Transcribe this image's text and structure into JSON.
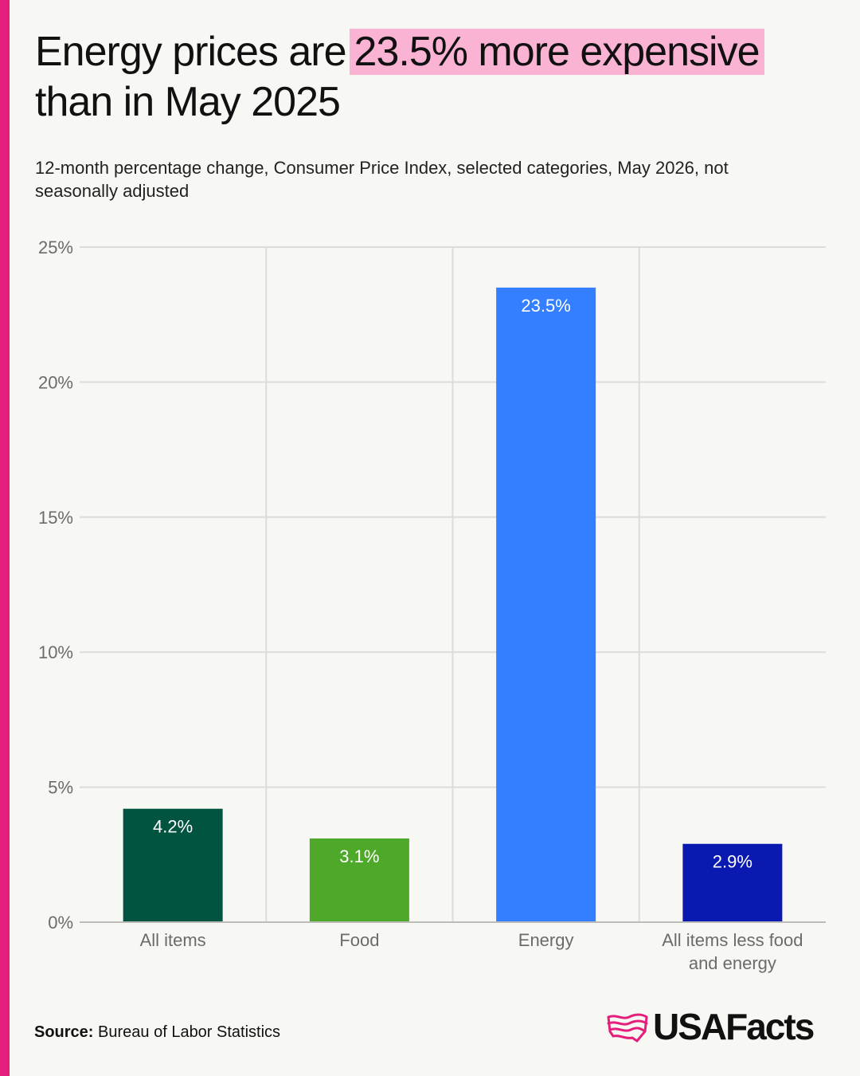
{
  "colors": {
    "accent": "#e41f7b",
    "highlight": "#fbb3d4",
    "background": "#f7f7f3",
    "grid": "#dcdcd8",
    "axis": "#bcbcb8",
    "tick_label": "#6b6b6b"
  },
  "header": {
    "title_before": "Energy prices are",
    "title_highlight": "23.5% more expensive",
    "title_after": "than in May 2025",
    "subtitle": "12-month percentage change, Consumer Price Index, selected categories, May 2026, not seasonally adjusted"
  },
  "chart_data": {
    "type": "bar",
    "title": "Energy prices are 23.5% more expensive than in May 2025",
    "subtitle": "12-month percentage change, Consumer Price Index, selected categories, May 2026, not seasonally adjusted",
    "xlabel": "",
    "ylabel": "",
    "ylim": [
      0,
      25
    ],
    "yticks": [
      {
        "value": 0,
        "label": "0%"
      },
      {
        "value": 5,
        "label": "5%"
      },
      {
        "value": 10,
        "label": "10%"
      },
      {
        "value": 15,
        "label": "15%"
      },
      {
        "value": 20,
        "label": "20%"
      },
      {
        "value": 25,
        "label": "25%"
      }
    ],
    "grid": true,
    "categories": [
      [
        "All items"
      ],
      [
        "Food"
      ],
      [
        "Energy"
      ],
      [
        "All items less food",
        "and energy"
      ]
    ],
    "values": [
      4.2,
      3.1,
      23.5,
      2.9
    ],
    "data_labels": [
      "4.2%",
      "3.1%",
      "23.5%",
      "2.9%"
    ],
    "bar_colors": [
      "#005440",
      "#4ea829",
      "#347fff",
      "#0a1ab0"
    ]
  },
  "footer": {
    "source_label": "Source:",
    "source_text": "Bureau of Labor Statistics",
    "logo_text": "USAFacts",
    "logo_icon": "usafacts-flag-map-icon"
  }
}
